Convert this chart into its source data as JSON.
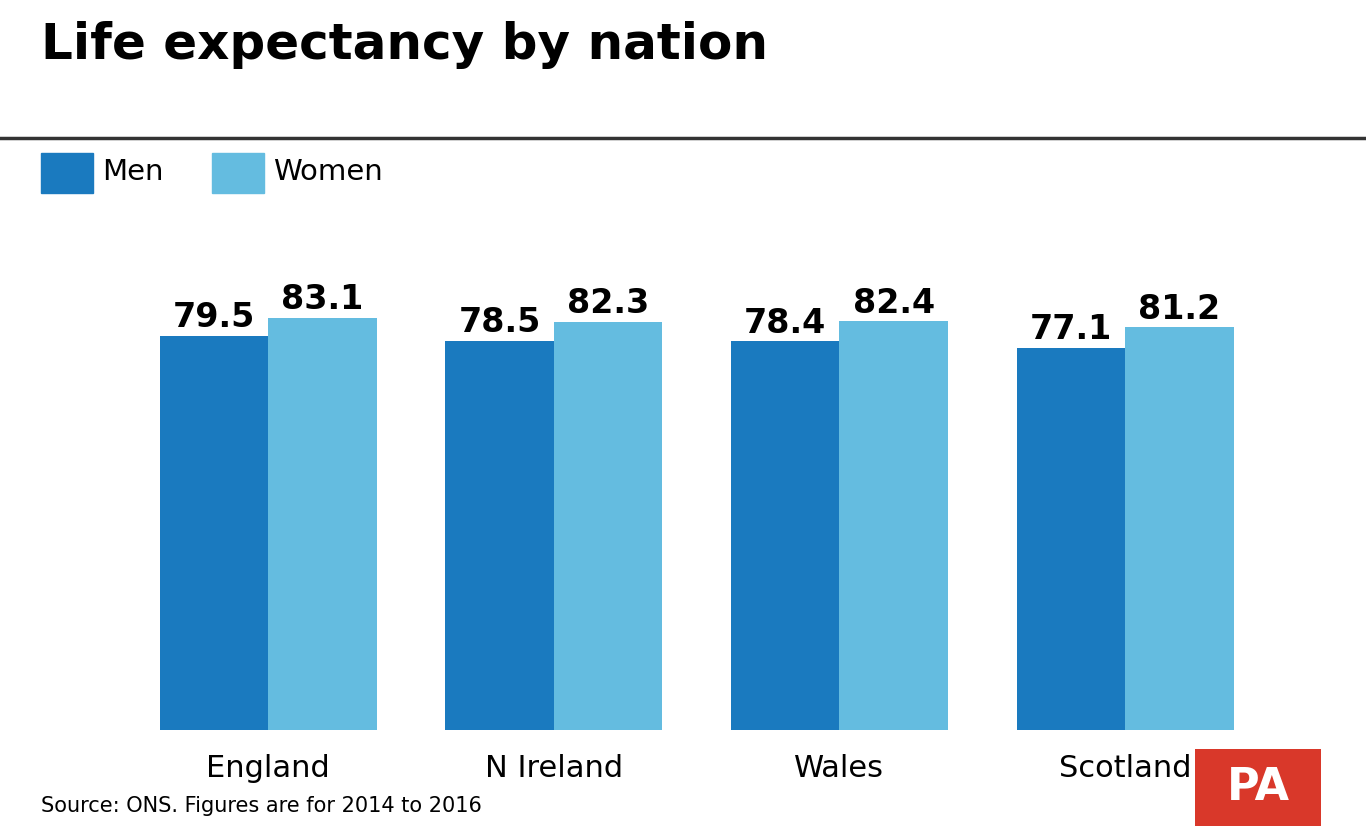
{
  "title": "Life expectancy by nation",
  "nations": [
    "England",
    "N Ireland",
    "Wales",
    "Scotland"
  ],
  "men_values": [
    79.5,
    78.5,
    78.4,
    77.1
  ],
  "women_values": [
    83.1,
    82.3,
    82.4,
    81.2
  ],
  "men_color": "#1a7abf",
  "women_color": "#64bce0",
  "background_color": "#ffffff",
  "bar_width": 0.38,
  "ylim_min": 0,
  "ylim_max": 88,
  "source_text": "Source: ONS. Figures are for 2014 to 2016",
  "title_fontsize": 36,
  "label_fontsize": 22,
  "value_fontsize": 24,
  "legend_fontsize": 21,
  "source_fontsize": 15,
  "pa_box_color": "#d9382a",
  "pa_text_color": "#ffffff"
}
